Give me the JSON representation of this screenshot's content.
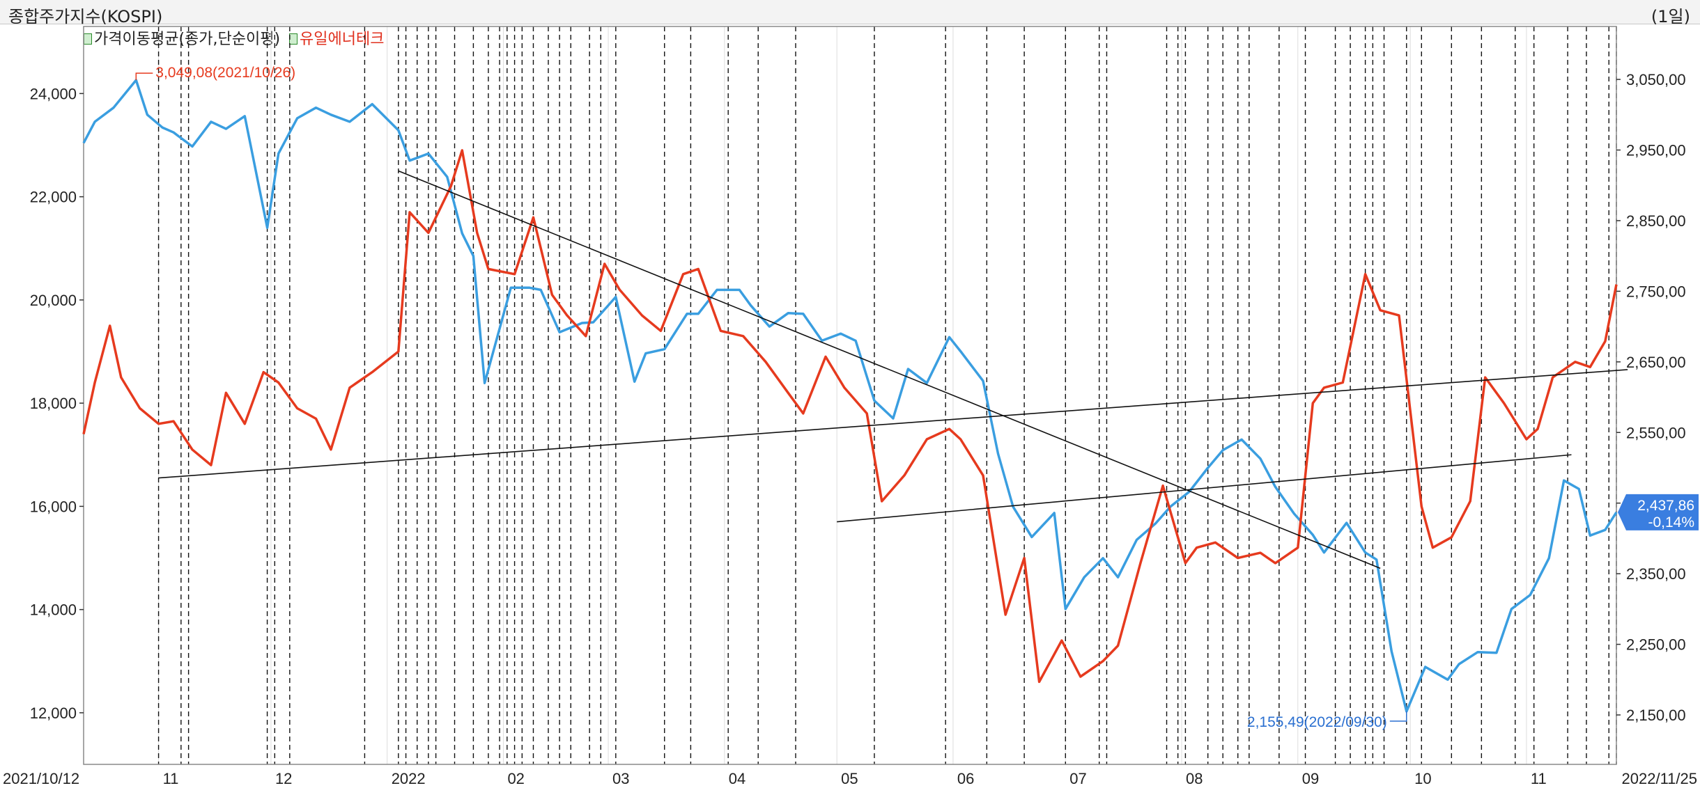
{
  "header": {
    "title": "종합주가지수(KOSPI)",
    "period": "(1일)"
  },
  "legend": [
    {
      "label": "가격이동평균(종가,단순이평)",
      "color": "#222222"
    },
    {
      "label": "유일에너테크",
      "color": "#e0301e"
    }
  ],
  "colors": {
    "kospi": "#3a9ee0",
    "stock": "#e63a1e",
    "price_tag_bg": "#3a7ee0"
  },
  "chart_data": {
    "type": "line",
    "x_start": "2021/10/12",
    "x_end": "2022/11/25",
    "x_ticks": [
      "11",
      "12",
      "2022",
      "02",
      "03",
      "04",
      "05",
      "06",
      "07",
      "08",
      "09",
      "10",
      "11"
    ],
    "left_axis": {
      "ylim": [
        11000,
        25300
      ],
      "ticks": [
        "12,000",
        "14,000",
        "16,000",
        "18,000",
        "20,000",
        "22,000",
        "24,000"
      ]
    },
    "right_axis": {
      "ylim": [
        2080,
        3125
      ],
      "ticks": [
        "2,150,00",
        "2,250,00",
        "2,350,00",
        "2,450,00",
        "2,550,00",
        "2,650,00",
        "2,750,00",
        "2,850,00",
        "2,950,00",
        "3,050,00"
      ]
    },
    "current_price": {
      "value": "2,437,86",
      "change": "-0,14%"
    },
    "annotations": [
      {
        "text": "3,049,08(2021/10/26)",
        "series": "종합주가지수(KOSPI)"
      },
      {
        "text": "2,155,49(2022/09/30)",
        "series": "종합주가지수(KOSPI)"
      }
    ],
    "series": [
      {
        "name": "종합주가지수(KOSPI)",
        "axis": "right",
        "x": [
          "2021-10-12",
          "2021-10-15",
          "2021-10-20",
          "2021-10-26",
          "2021-10-29",
          "2021-11-02",
          "2021-11-05",
          "2021-11-10",
          "2021-11-15",
          "2021-11-19",
          "2021-11-24",
          "2021-11-30",
          "2021-12-03",
          "2021-12-08",
          "2021-12-13",
          "2021-12-17",
          "2021-12-22",
          "2021-12-28",
          "2022-01-04",
          "2022-01-07",
          "2022-01-12",
          "2022-01-17",
          "2022-01-21",
          "2022-01-24",
          "2022-01-27",
          "2022-02-03",
          "2022-02-08",
          "2022-02-11",
          "2022-02-16",
          "2022-02-22",
          "2022-02-25",
          "2022-03-03",
          "2022-03-08",
          "2022-03-11",
          "2022-03-16",
          "2022-03-22",
          "2022-03-25",
          "2022-03-30",
          "2022-04-05",
          "2022-04-08",
          "2022-04-13",
          "2022-04-18",
          "2022-04-22",
          "2022-04-27",
          "2022-05-02",
          "2022-05-06",
          "2022-05-11",
          "2022-05-16",
          "2022-05-20",
          "2022-05-25",
          "2022-05-31",
          "2022-06-03",
          "2022-06-09",
          "2022-06-13",
          "2022-06-17",
          "2022-06-22",
          "2022-06-28",
          "2022-07-01",
          "2022-07-06",
          "2022-07-11",
          "2022-07-15",
          "2022-07-20",
          "2022-07-25",
          "2022-07-29",
          "2022-08-03",
          "2022-08-08",
          "2022-08-12",
          "2022-08-17",
          "2022-08-22",
          "2022-08-26",
          "2022-08-31",
          "2022-09-05",
          "2022-09-08",
          "2022-09-14",
          "2022-09-19",
          "2022-09-22",
          "2022-09-26",
          "2022-09-30",
          "2022-10-05",
          "2022-10-11",
          "2022-10-14",
          "2022-10-19",
          "2022-10-24",
          "2022-10-28",
          "2022-11-02",
          "2022-11-07",
          "2022-11-11",
          "2022-11-15",
          "2022-11-18",
          "2022-11-22",
          "2022-11-25"
        ],
        "values": [
          2960,
          2990,
          3010,
          3049,
          3000,
          2982,
          2975,
          2955,
          2990,
          2980,
          2998,
          2840,
          2945,
          2995,
          3010,
          3000,
          2990,
          3015,
          2978,
          2935,
          2945,
          2912,
          2832,
          2800,
          2620,
          2755,
          2755,
          2752,
          2692,
          2705,
          2706,
          2742,
          2622,
          2662,
          2668,
          2718,
          2718,
          2752,
          2752,
          2730,
          2700,
          2719,
          2718,
          2680,
          2690,
          2680,
          2595,
          2570,
          2640,
          2620,
          2685,
          2665,
          2623,
          2520,
          2445,
          2402,
          2436,
          2300,
          2345,
          2372,
          2345,
          2398,
          2421,
          2445,
          2466,
          2500,
          2525,
          2540,
          2513,
          2473,
          2435,
          2405,
          2380,
          2422,
          2380,
          2370,
          2240,
          2155,
          2218,
          2200,
          2222,
          2239,
          2238,
          2300,
          2320,
          2372,
          2482,
          2470,
          2404,
          2412,
          2437
        ]
      },
      {
        "name": "유일에너테크",
        "axis": "left",
        "x": [
          "2021-10-12",
          "2021-10-15",
          "2021-10-19",
          "2021-10-22",
          "2021-10-27",
          "2021-11-01",
          "2021-11-05",
          "2021-11-10",
          "2021-11-15",
          "2021-11-19",
          "2021-11-24",
          "2021-11-29",
          "2021-12-03",
          "2021-12-08",
          "2021-12-13",
          "2021-12-17",
          "2021-12-22",
          "2021-12-28",
          "2022-01-04",
          "2022-01-07",
          "2022-01-12",
          "2022-01-18",
          "2022-01-21",
          "2022-01-25",
          "2022-01-28",
          "2022-02-04",
          "2022-02-09",
          "2022-02-14",
          "2022-02-18",
          "2022-02-23",
          "2022-02-28",
          "2022-03-04",
          "2022-03-10",
          "2022-03-15",
          "2022-03-21",
          "2022-03-25",
          "2022-03-31",
          "2022-04-06",
          "2022-04-12",
          "2022-04-18",
          "2022-04-22",
          "2022-04-28",
          "2022-05-03",
          "2022-05-09",
          "2022-05-13",
          "2022-05-19",
          "2022-05-25",
          "2022-05-31",
          "2022-06-03",
          "2022-06-09",
          "2022-06-15",
          "2022-06-20",
          "2022-06-24",
          "2022-06-30",
          "2022-07-05",
          "2022-07-11",
          "2022-07-15",
          "2022-07-21",
          "2022-07-27",
          "2022-08-02",
          "2022-08-05",
          "2022-08-10",
          "2022-08-16",
          "2022-08-22",
          "2022-08-26",
          "2022-09-01",
          "2022-09-05",
          "2022-09-08",
          "2022-09-13",
          "2022-09-19",
          "2022-09-23",
          "2022-09-28",
          "2022-10-04",
          "2022-10-07",
          "2022-10-12",
          "2022-10-17",
          "2022-10-21",
          "2022-10-26",
          "2022-11-01",
          "2022-11-04",
          "2022-11-08",
          "2022-11-14",
          "2022-11-18",
          "2022-11-22",
          "2022-11-25"
        ],
        "values": [
          17400,
          18400,
          19500,
          18500,
          17900,
          17600,
          17650,
          17100,
          16800,
          18200,
          17600,
          18600,
          18400,
          17900,
          17700,
          17100,
          18300,
          18600,
          19000,
          21700,
          21300,
          22200,
          22900,
          21300,
          20600,
          20500,
          21600,
          20100,
          19700,
          19300,
          20700,
          20200,
          19700,
          19400,
          20500,
          20600,
          19400,
          19300,
          18800,
          18200,
          17800,
          18900,
          18300,
          17800,
          16100,
          16600,
          17300,
          17500,
          17300,
          16600,
          13900,
          15000,
          12600,
          13400,
          12700,
          13000,
          13300,
          14900,
          16400,
          14900,
          15200,
          15300,
          15000,
          15100,
          14900,
          15200,
          18000,
          18300,
          18400,
          20500,
          19800,
          19700,
          16000,
          15200,
          15400,
          16100,
          18500,
          18000,
          17300,
          17500,
          18500,
          18800,
          18700,
          19200,
          20300
        ]
      }
    ],
    "trend_lines": 4,
    "event_markers": 62
  }
}
